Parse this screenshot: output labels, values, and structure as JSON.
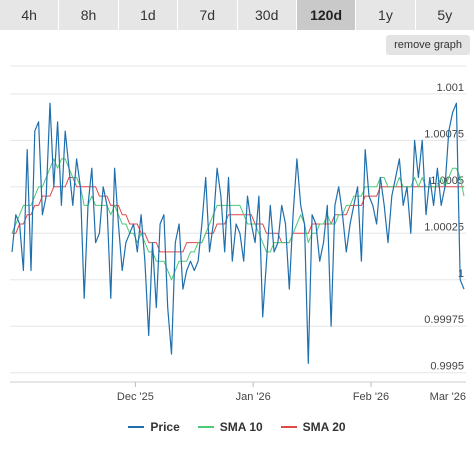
{
  "tabs": [
    {
      "label": "4h",
      "active": false
    },
    {
      "label": "8h",
      "active": false
    },
    {
      "label": "1d",
      "active": false
    },
    {
      "label": "7d",
      "active": false
    },
    {
      "label": "30d",
      "active": false
    },
    {
      "label": "120d",
      "active": true
    },
    {
      "label": "1y",
      "active": false
    },
    {
      "label": "5y",
      "active": false
    }
  ],
  "remove_graph_label": "remove graph",
  "colors": {
    "price": "#1f6fad",
    "sma10": "#4cc97a",
    "sma20": "#e04848",
    "grid": "#e6e6e6",
    "axis": "#444444"
  },
  "chart_data": {
    "type": "line",
    "x_tick_labels": [
      "Dec '25",
      "Jan '26",
      "Feb '26",
      "Mar '26"
    ],
    "y_ticks": [
      0.9995,
      0.99975,
      1,
      1.00025,
      1.0005,
      1.00075,
      1.001
    ],
    "y_tick_labels": [
      "0.9995",
      "0.99975",
      "1",
      "1.00025",
      "1.0005",
      "1.00075",
      "1.001"
    ],
    "ylim": [
      0.99945,
      1.00115
    ],
    "x_range_days": [
      0,
      120
    ],
    "x_tick_days": [
      33,
      64,
      95,
      124
    ],
    "grid": true,
    "legend_position": "bottom",
    "series": [
      {
        "name": "Price",
        "key": "price",
        "values": [
          1.00015,
          1.00035,
          1.0003,
          1.00005,
          1.0007,
          1.00005,
          1.0008,
          1.00085,
          1.00035,
          1.00045,
          1.00095,
          1.0005,
          1.00085,
          1.0004,
          1.0008,
          1.0006,
          1.0004,
          1.00065,
          1.0005,
          0.9999,
          1.0004,
          1.0006,
          1.0002,
          1.00025,
          1.0005,
          1.0004,
          0.9999,
          1.0006,
          1.0003,
          1.00005,
          1.0002,
          1.00025,
          1.0003,
          1.00015,
          1.00035,
          1.0001,
          0.9997,
          1.0002,
          0.99985,
          1.0003,
          1.00035,
          0.99985,
          0.9996,
          1.0002,
          1.0003,
          0.99995,
          1.00005,
          1.0001,
          1.00005,
          1.0001,
          1.0003,
          1.00055,
          1.00015,
          1.0003,
          1.0006,
          1.00045,
          1.00015,
          1.00055,
          1.0001,
          1.0003,
          1.00025,
          1.0001,
          1.00045,
          1.0003,
          1.0002,
          1.00045,
          0.9998,
          1.0001,
          1.0004,
          1.00015,
          1.0002,
          1.0004,
          1.0003,
          0.99995,
          1.00035,
          1.00065,
          1.0004,
          1.0003,
          0.99955,
          1.00035,
          1.0003,
          1.0001,
          1.0002,
          1.0004,
          0.99975,
          1.0004,
          1.0005,
          1.00035,
          1.00015,
          1.0003,
          1.0004,
          1.0005,
          1.0001,
          1.0007,
          1.00045,
          1.0004,
          1.0003,
          1.00055,
          1.0004,
          1.0002,
          1.00045,
          1.00055,
          1.00065,
          1.0004,
          1.0005,
          1.00025,
          1.00075,
          1.00055,
          1.00075,
          1.00035,
          1.00055,
          1.0004,
          1.0006,
          1.0004,
          1.0005,
          1.0008,
          1.0009,
          1.00095,
          1.0,
          0.99995
        ]
      },
      {
        "name": "SMA 10",
        "key": "sma10",
        "values": [
          1.00025,
          1.0003,
          1.00035,
          1.0004,
          1.0004,
          1.0004,
          1.00045,
          1.0005,
          1.0005,
          1.00055,
          1.0006,
          1.00065,
          1.0006,
          1.00065,
          1.00065,
          1.0006,
          1.00055,
          1.00055,
          1.0005,
          1.0004,
          1.0004,
          1.00045,
          1.0004,
          1.0004,
          1.0004,
          1.0004,
          1.00035,
          1.0004,
          1.00035,
          1.0003,
          1.0003,
          1.00025,
          1.00025,
          1.0002,
          1.00025,
          1.0002,
          1.00015,
          1.00015,
          1.0001,
          1.0001,
          1.0001,
          1.00005,
          1.0,
          1.00005,
          1.0001,
          1.0001,
          1.0001,
          1.00015,
          1.00015,
          1.0002,
          1.0002,
          1.00025,
          1.0003,
          1.00035,
          1.0004,
          1.0004,
          1.0004,
          1.0004,
          1.0004,
          1.0004,
          1.0004,
          1.00035,
          1.0003,
          1.0003,
          1.0003,
          1.00025,
          1.0002,
          1.00015,
          1.00015,
          1.0002,
          1.0002,
          1.0002,
          1.0002,
          1.0002,
          1.00025,
          1.0003,
          1.00035,
          1.0003,
          1.0002,
          1.00025,
          1.00025,
          1.0003,
          1.0003,
          1.00035,
          1.0003,
          1.0003,
          1.00035,
          1.00035,
          1.0004,
          1.0004,
          1.00045,
          1.00045,
          1.00045,
          1.0005,
          1.0005,
          1.0005,
          1.0005,
          1.00055,
          1.00055,
          1.0005,
          1.0005,
          1.0005,
          1.00055,
          1.0005,
          1.0005,
          1.0005,
          1.00055,
          1.0005,
          1.00055,
          1.0005,
          1.0005,
          1.0005,
          1.0005,
          1.00055,
          1.0005,
          1.00055,
          1.0006,
          1.0006,
          1.00055,
          1.00045
        ]
      },
      {
        "name": "SMA 20",
        "key": "sma20",
        "values": [
          1.00025,
          1.00025,
          1.0003,
          1.0003,
          1.00035,
          1.00035,
          1.0004,
          1.0004,
          1.00045,
          1.00045,
          1.00045,
          1.0005,
          1.0005,
          1.0005,
          1.0005,
          1.00055,
          1.00055,
          1.0005,
          1.0005,
          1.0005,
          1.0005,
          1.0005,
          1.0005,
          1.00045,
          1.00045,
          1.00045,
          1.0004,
          1.0004,
          1.0004,
          1.00035,
          1.00035,
          1.0003,
          1.0003,
          1.0003,
          1.00025,
          1.00025,
          1.0002,
          1.0002,
          1.0002,
          1.00015,
          1.00015,
          1.00015,
          1.00015,
          1.00015,
          1.00015,
          1.00015,
          1.0002,
          1.0002,
          1.0002,
          1.0002,
          1.0002,
          1.00025,
          1.00025,
          1.00025,
          1.0003,
          1.0003,
          1.0003,
          1.00035,
          1.00035,
          1.00035,
          1.00035,
          1.00035,
          1.00035,
          1.00035,
          1.0003,
          1.0003,
          1.0003,
          1.00025,
          1.00025,
          1.00025,
          1.00025,
          1.0002,
          1.0002,
          1.0002,
          1.00025,
          1.00025,
          1.00025,
          1.00025,
          1.00025,
          1.0003,
          1.0003,
          1.0003,
          1.0003,
          1.0003,
          1.0003,
          1.00035,
          1.00035,
          1.00035,
          1.00035,
          1.0004,
          1.0004,
          1.0004,
          1.0004,
          1.00045,
          1.00045,
          1.00045,
          1.00045,
          1.0005,
          1.0005,
          1.0005,
          1.0005,
          1.0005,
          1.0005,
          1.0005,
          1.0005,
          1.0005,
          1.0005,
          1.0005,
          1.0005,
          1.0005,
          1.0005,
          1.0005,
          1.0005,
          1.0005,
          1.0005,
          1.0005,
          1.0005,
          1.0005,
          1.0005,
          1.0005
        ]
      }
    ]
  }
}
